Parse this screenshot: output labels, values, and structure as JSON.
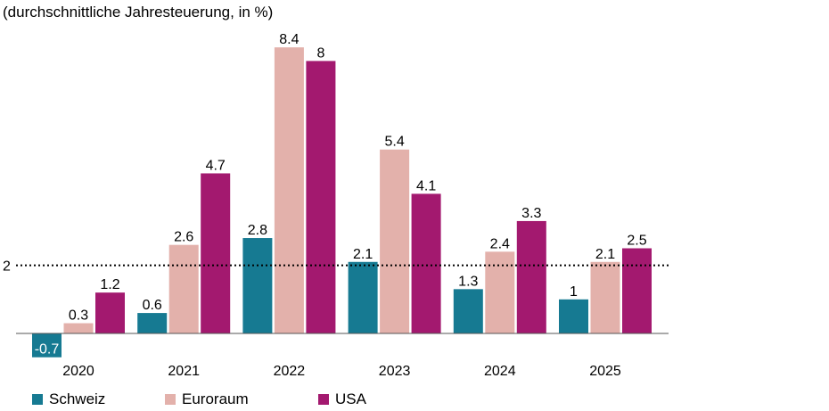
{
  "subtitle": "(durchschnittliche Jahresteuerung, in %)",
  "chart_data": {
    "type": "bar",
    "title": "",
    "subtitle": "(durchschnittliche Jahresteuerung, in %)",
    "xlabel": "",
    "ylabel": "",
    "categories": [
      "2020",
      "2021",
      "2022",
      "2023",
      "2024",
      "2025"
    ],
    "series": [
      {
        "name": "Schweiz",
        "color": "#167a92",
        "values": [
          -0.7,
          0.6,
          2.8,
          2.1,
          1.3,
          1.0
        ],
        "labels": [
          "-0.7",
          "0.6",
          "2.8",
          "2.1",
          "1.3",
          "1"
        ]
      },
      {
        "name": "Euroraum",
        "color": "#e3b1ab",
        "values": [
          0.3,
          2.6,
          8.4,
          5.4,
          2.4,
          2.1
        ],
        "labels": [
          "0.3",
          "2.6",
          "8.4",
          "5.4",
          "2.4",
          "2.1"
        ]
      },
      {
        "name": "USA",
        "color": "#a3196f",
        "values": [
          1.2,
          4.7,
          8.0,
          4.1,
          3.3,
          2.5
        ],
        "labels": [
          "1.2",
          "4.7",
          "8",
          "4.1",
          "3.3",
          "2.5"
        ]
      }
    ],
    "reference_line": {
      "value": 2,
      "label": "2",
      "style": "dotted"
    },
    "ylim": [
      -1.1,
      9.0
    ],
    "legend_position": "bottom-left",
    "grid": false
  }
}
